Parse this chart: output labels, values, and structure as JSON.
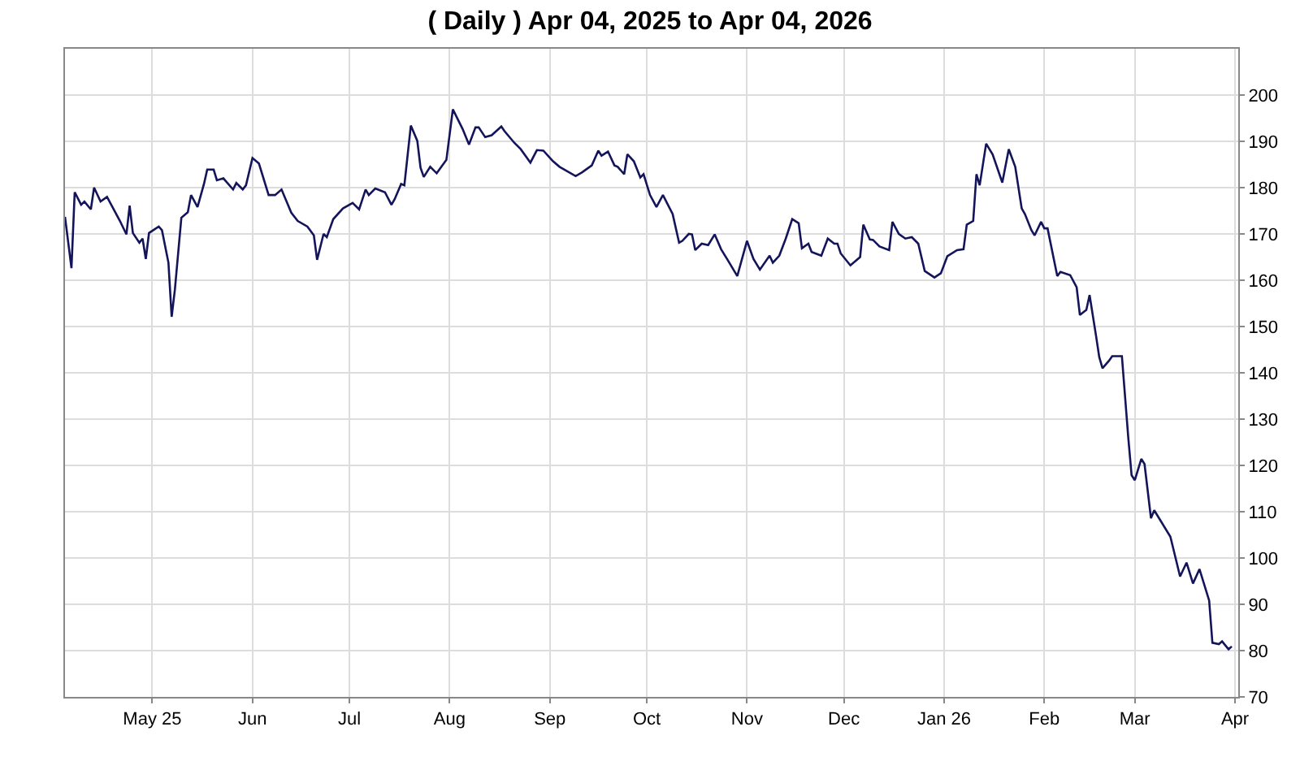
{
  "chart_data": {
    "type": "line",
    "title": "( Daily ) Apr 04, 2025 to Apr 04, 2026",
    "x": [
      "2025-04-04",
      "2025-04-06",
      "2025-04-07",
      "2025-04-09",
      "2025-04-10",
      "2025-04-12",
      "2025-04-13",
      "2025-04-15",
      "2025-04-17",
      "2025-04-21",
      "2025-04-23",
      "2025-04-24",
      "2025-04-25",
      "2025-04-27",
      "2025-04-28",
      "2025-04-29",
      "2025-04-30",
      "2025-05-03",
      "2025-05-04",
      "2025-05-06",
      "2025-05-07",
      "2025-05-08",
      "2025-05-10",
      "2025-05-12",
      "2025-05-13",
      "2025-05-15",
      "2025-05-17",
      "2025-05-18",
      "2025-05-20",
      "2025-05-21",
      "2025-05-23",
      "2025-05-26",
      "2025-05-27",
      "2025-05-29",
      "2025-05-30",
      "2025-06-01",
      "2025-06-03",
      "2025-06-06",
      "2025-06-08",
      "2025-06-10",
      "2025-06-13",
      "2025-06-15",
      "2025-06-18",
      "2025-06-20",
      "2025-06-21",
      "2025-06-23",
      "2025-06-24",
      "2025-06-26",
      "2025-06-29",
      "2025-07-02",
      "2025-07-04",
      "2025-07-06",
      "2025-07-07",
      "2025-07-09",
      "2025-07-12",
      "2025-07-14",
      "2025-07-15",
      "2025-07-17",
      "2025-07-18",
      "2025-07-20",
      "2025-07-22",
      "2025-07-23",
      "2025-07-24",
      "2025-07-26",
      "2025-07-28",
      "2025-07-31",
      "2025-08-02",
      "2025-08-05",
      "2025-08-07",
      "2025-08-09",
      "2025-08-10",
      "2025-08-12",
      "2025-08-14",
      "2025-08-17",
      "2025-08-18",
      "2025-08-21",
      "2025-08-23",
      "2025-08-26",
      "2025-08-28",
      "2025-08-30",
      "2025-09-02",
      "2025-09-04",
      "2025-09-09",
      "2025-09-11",
      "2025-09-14",
      "2025-09-16",
      "2025-09-17",
      "2025-09-19",
      "2025-09-21",
      "2025-09-22",
      "2025-09-24",
      "2025-09-25",
      "2025-09-27",
      "2025-09-29",
      "2025-09-30",
      "2025-10-02",
      "2025-10-04",
      "2025-10-06",
      "2025-10-09",
      "2025-10-11",
      "2025-10-12",
      "2025-10-14",
      "2025-10-15",
      "2025-10-16",
      "2025-10-18",
      "2025-10-20",
      "2025-10-22",
      "2025-10-24",
      "2025-10-26",
      "2025-10-29",
      "2025-11-01",
      "2025-11-03",
      "2025-11-05",
      "2025-11-08",
      "2025-11-09",
      "2025-11-11",
      "2025-11-13",
      "2025-11-15",
      "2025-11-17",
      "2025-11-18",
      "2025-11-20",
      "2025-11-21",
      "2025-11-24",
      "2025-11-26",
      "2025-11-28",
      "2025-11-29",
      "2025-11-30",
      "2025-12-03",
      "2025-12-06",
      "2025-12-07",
      "2025-12-09",
      "2025-12-10",
      "2025-12-12",
      "2025-12-15",
      "2025-12-16",
      "2025-12-18",
      "2025-12-20",
      "2025-12-22",
      "2025-12-24",
      "2025-12-26",
      "2025-12-29",
      "2025-12-31",
      "2026-01-02",
      "2026-01-05",
      "2026-01-07",
      "2026-01-08",
      "2026-01-10",
      "2026-01-11",
      "2026-01-12",
      "2026-01-14",
      "2026-01-16",
      "2026-01-19",
      "2026-01-21",
      "2026-01-23",
      "2026-01-25",
      "2026-01-26",
      "2026-01-28",
      "2026-01-29",
      "2026-01-31",
      "2026-02-01",
      "2026-02-02",
      "2026-02-05",
      "2026-02-06",
      "2026-02-09",
      "2026-02-11",
      "2026-02-12",
      "2026-02-14",
      "2026-02-15",
      "2026-02-17",
      "2026-02-18",
      "2026-02-19",
      "2026-02-21",
      "2026-02-22",
      "2026-02-25",
      "2026-02-27",
      "2026-02-28",
      "2026-03-01",
      "2026-03-03",
      "2026-03-04",
      "2026-03-06",
      "2026-03-07",
      "2026-03-12",
      "2026-03-15",
      "2026-03-17",
      "2026-03-19",
      "2026-03-21",
      "2026-03-24",
      "2026-03-25",
      "2026-03-27",
      "2026-03-28",
      "2026-03-30",
      "2026-03-31"
    ],
    "series": [
      {
        "color": "#14145a",
        "values": [
          173.7,
          162.6,
          179,
          176.3,
          177,
          175.3,
          180,
          177,
          178,
          172.8,
          169.9,
          176.1,
          170.2,
          168.1,
          169,
          164.6,
          170.2,
          171.6,
          170.8,
          163.8,
          152.1,
          158,
          173.5,
          174.7,
          178.4,
          175.8,
          180.8,
          183.9,
          183.9,
          181.6,
          182,
          179.6,
          181,
          179.6,
          180.5,
          186.4,
          185.2,
          178.4,
          178.4,
          179.6,
          174.6,
          172.8,
          171.6,
          169.7,
          164.4,
          170,
          169.3,
          173.2,
          175.5,
          176.7,
          175.3,
          179.6,
          178.4,
          179.8,
          179,
          176.3,
          177.5,
          180.8,
          180.5,
          193.4,
          190.1,
          184.3,
          182.3,
          184.5,
          183.1,
          186,
          196.9,
          192.7,
          189.3,
          193,
          193,
          190.9,
          191.3,
          193.2,
          192.2,
          189.7,
          188.3,
          185.4,
          188.1,
          188,
          185.7,
          184.5,
          182.5,
          183.3,
          184.8,
          188,
          186.9,
          187.8,
          184.8,
          184.5,
          182.9,
          187.2,
          185.7,
          182.2,
          182.9,
          178.4,
          175.8,
          178.4,
          174.3,
          168.1,
          168.5,
          170,
          169.9,
          166.5,
          167.9,
          167.6,
          169.9,
          166.7,
          164.4,
          160.9,
          168.5,
          164.6,
          162.3,
          165.3,
          163.8,
          165.3,
          169,
          173.2,
          172.3,
          166.9,
          167.9,
          166.1,
          165.3,
          169,
          167.9,
          167.9,
          165.8,
          163.2,
          165,
          172,
          168.8,
          168.7,
          167.3,
          166.5,
          172.6,
          170,
          169,
          169.3,
          167.9,
          162,
          160.6,
          161.5,
          165.2,
          166.5,
          166.7,
          172,
          172.8,
          182.9,
          180.5,
          189.5,
          187.2,
          181.1,
          188.3,
          184.5,
          175.5,
          174.3,
          170.8,
          169.7,
          172.6,
          171.2,
          171.2,
          160.9,
          161.8,
          161.1,
          158.5,
          152.5,
          153.6,
          156.8,
          148,
          143.4,
          141,
          142.6,
          143.6,
          143.6,
          125.8,
          117.9,
          116.8,
          121.4,
          120.3,
          108.6,
          110.3,
          104.6,
          96,
          99,
          94.5,
          97.6,
          90.8,
          81.7,
          81.4,
          82,
          80.3,
          80.9
        ]
      }
    ],
    "xlim": [
      "2025-04-04",
      "2026-04-02"
    ],
    "xticks": [
      {
        "value": "2025-05-01",
        "label": "May 25"
      },
      {
        "value": "2025-06-01",
        "label": "Jun"
      },
      {
        "value": "2025-07-01",
        "label": "Jul"
      },
      {
        "value": "2025-08-01",
        "label": "Aug"
      },
      {
        "value": "2025-09-01",
        "label": "Sep"
      },
      {
        "value": "2025-10-01",
        "label": "Oct"
      },
      {
        "value": "2025-11-01",
        "label": "Nov"
      },
      {
        "value": "2025-12-01",
        "label": "Dec"
      },
      {
        "value": "2026-01-01",
        "label": "Jan 26"
      },
      {
        "value": "2026-02-01",
        "label": "Feb"
      },
      {
        "value": "2026-03-01",
        "label": "Mar"
      },
      {
        "value": "2026-04-01",
        "label": "Apr"
      }
    ],
    "ylim": [
      70,
      210
    ],
    "yticks": [
      70,
      80,
      90,
      100,
      110,
      120,
      130,
      140,
      150,
      160,
      170,
      180,
      190,
      200
    ],
    "grid": true,
    "marker": "none",
    "line_style": "solid"
  }
}
